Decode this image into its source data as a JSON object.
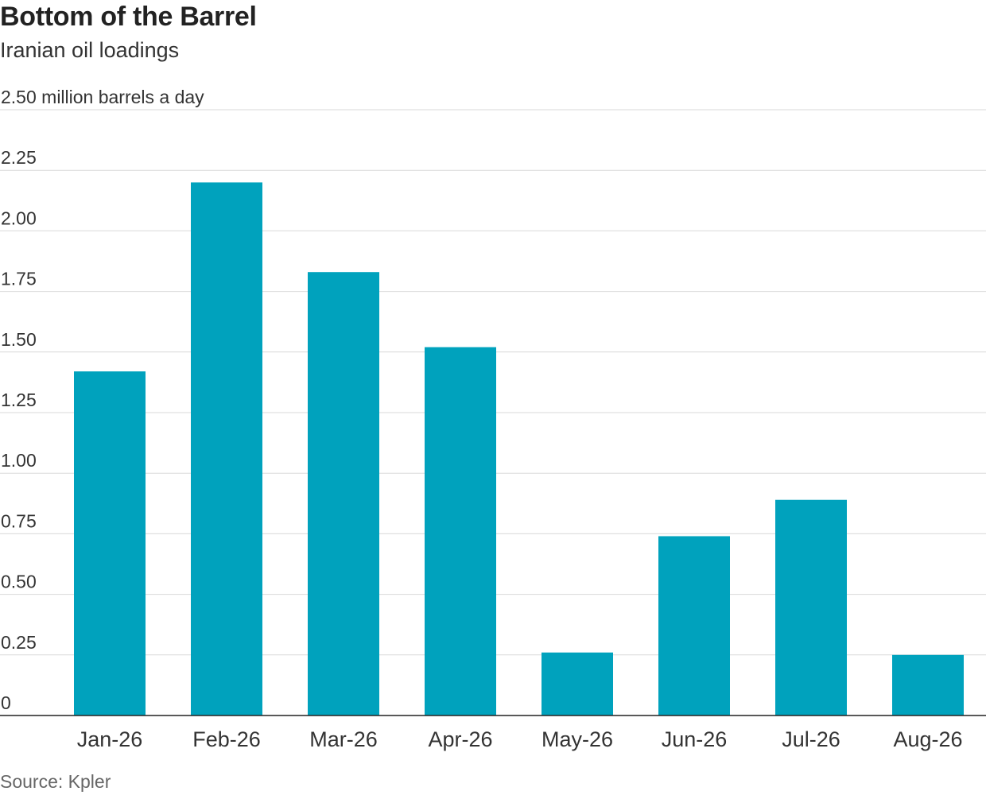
{
  "title": "Bottom of the Barrel",
  "subtitle": "Iranian oil loadings",
  "source": "Source: Kpler",
  "colors": {
    "bar": "#00a2bd",
    "grid": "#d9d9d9",
    "axis": "#222222"
  },
  "chart_data": {
    "type": "bar",
    "title": "Bottom of the Barrel",
    "subtitle": "Iranian oil loadings",
    "xlabel": "",
    "ylabel": "",
    "unit": "million barrels a day",
    "categories": [
      "Jan-26",
      "Feb-26",
      "Mar-26",
      "Apr-26",
      "May-26",
      "Jun-26",
      "Jul-26",
      "Aug-26"
    ],
    "values": [
      1.42,
      2.2,
      1.83,
      1.52,
      0.26,
      0.74,
      0.89,
      0.25
    ],
    "ylim": [
      0,
      2.5
    ],
    "yticks": [
      0,
      0.25,
      0.5,
      0.75,
      1.0,
      1.25,
      1.5,
      1.75,
      2.0,
      2.25,
      2.5
    ],
    "ytick_labels": [
      "0",
      "0.25",
      "0.50",
      "0.75",
      "1.00",
      "1.25",
      "1.50",
      "1.75",
      "2.00",
      "2.25",
      "2.50 million barrels a day"
    ],
    "grid": true,
    "legend": "none"
  }
}
